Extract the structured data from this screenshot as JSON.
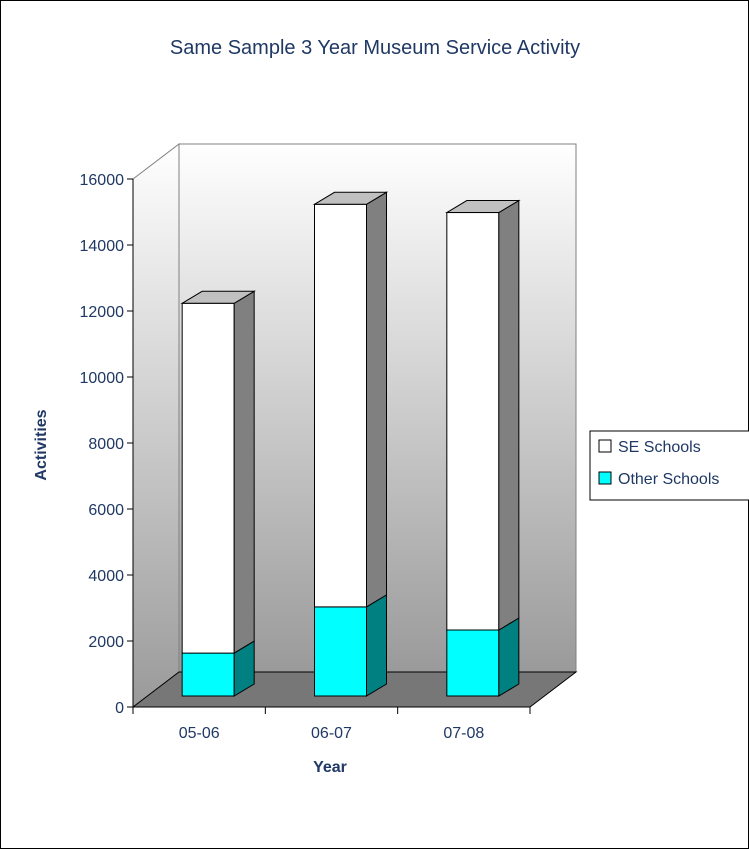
{
  "chart_data": {
    "type": "bar",
    "stacked": true,
    "three_d": true,
    "title": "Same Sample 3 Year Museum Service Activity",
    "xlabel": "Year",
    "ylabel": "Activities",
    "categories": [
      "05-06",
      "06-07",
      "07-08"
    ],
    "series": [
      {
        "name": "Other Schools",
        "values": [
          1300,
          2700,
          2000
        ],
        "color": "#00ffff"
      },
      {
        "name": "SE Schools",
        "values": [
          10600,
          12200,
          12650
        ],
        "color": "#ffffff"
      }
    ],
    "ylim": [
      0,
      16000
    ],
    "yticks": [
      "0",
      "2000",
      "4000",
      "6000",
      "8000",
      "10000",
      "12000",
      "14000",
      "16000"
    ],
    "legend_position": "right",
    "grid": false
  }
}
